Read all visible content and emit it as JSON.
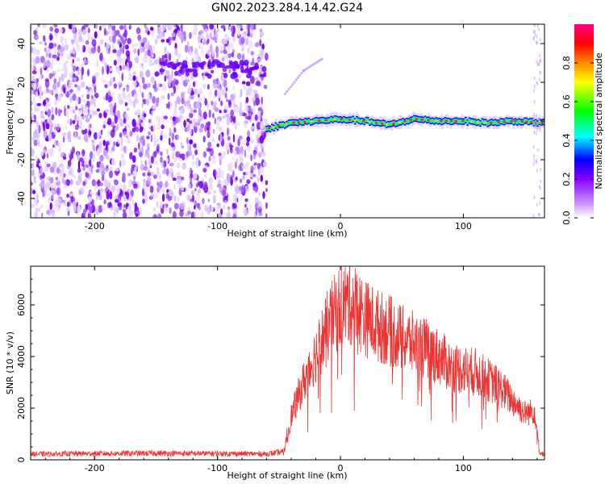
{
  "title": "GN02.2023.284.14.42.G24",
  "chart_data": [
    {
      "type": "heatmap",
      "xlabel": "Height of straight line (km)",
      "ylabel": "Frequency (Hz)",
      "xlim": [
        -252,
        166
      ],
      "ylim": [
        -50,
        50
      ],
      "x_ticks": [
        -200,
        -100,
        0,
        100
      ],
      "y_ticks": [
        -40,
        -20,
        0,
        20,
        40
      ],
      "x_tick_labels": [
        "-200",
        "-100",
        "0",
        "100"
      ],
      "y_tick_labels": [
        "-40",
        "-20",
        "0",
        "20",
        "40"
      ],
      "noise_region_km": [
        -252,
        -60
      ],
      "signal_band": [
        {
          "x": -60,
          "f": -4
        },
        {
          "x": -40,
          "f": -1
        },
        {
          "x": -20,
          "f": 0
        },
        {
          "x": 0,
          "f": 1
        },
        {
          "x": 20,
          "f": 0
        },
        {
          "x": 40,
          "f": -2
        },
        {
          "x": 60,
          "f": 1
        },
        {
          "x": 80,
          "f": 0
        },
        {
          "x": 100,
          "f": 0
        },
        {
          "x": 120,
          "f": -1
        },
        {
          "x": 140,
          "f": 0
        },
        {
          "x": 166,
          "f": -1
        }
      ],
      "faint_trace": [
        {
          "x": -45,
          "f": 14
        },
        {
          "x": -30,
          "f": 26
        },
        {
          "x": -15,
          "f": 32
        }
      ],
      "colorbar": {
        "label": "Normalized spectral amplitude",
        "range": [
          0,
          1
        ],
        "ticks": [
          0.0,
          0.2,
          0.4,
          0.6,
          0.8
        ],
        "tick_labels": [
          "0.0",
          "0.2",
          "0.4",
          "0.6",
          "0.8"
        ],
        "colors": [
          "#ffffff",
          "#cc99ff",
          "#8800ff",
          "#0000ff",
          "#00ffff",
          "#00ff00",
          "#ffff00",
          "#ff8800",
          "#ff0000",
          "#ff0088"
        ]
      }
    },
    {
      "type": "line",
      "xlabel": "Height of straight line (km)",
      "ylabel": "SNR (10 * v/v)",
      "xlim": [
        -252,
        166
      ],
      "ylim": [
        0,
        7500
      ],
      "x_ticks": [
        -200,
        -100,
        0,
        100
      ],
      "y_ticks": [
        0,
        2000,
        4000,
        6000
      ],
      "x_tick_labels": [
        "-200",
        "-100",
        "0",
        "100"
      ],
      "y_tick_labels": [
        "0",
        "2000",
        "4000",
        "6000"
      ],
      "color": "#ee3333",
      "x": [
        -252,
        -200,
        -150,
        -100,
        -60,
        -46,
        -40,
        -30,
        -20,
        -10,
        0,
        10,
        20,
        30,
        40,
        50,
        60,
        70,
        80,
        90,
        100,
        110,
        120,
        130,
        140,
        150,
        158,
        162,
        166
      ],
      "y": [
        220,
        240,
        250,
        240,
        230,
        300,
        1700,
        3000,
        4100,
        5200,
        6000,
        6100,
        5500,
        5200,
        5000,
        4700,
        4500,
        4300,
        4000,
        3600,
        3500,
        3400,
        3100,
        2800,
        2300,
        1800,
        1900,
        300,
        200
      ]
    }
  ]
}
